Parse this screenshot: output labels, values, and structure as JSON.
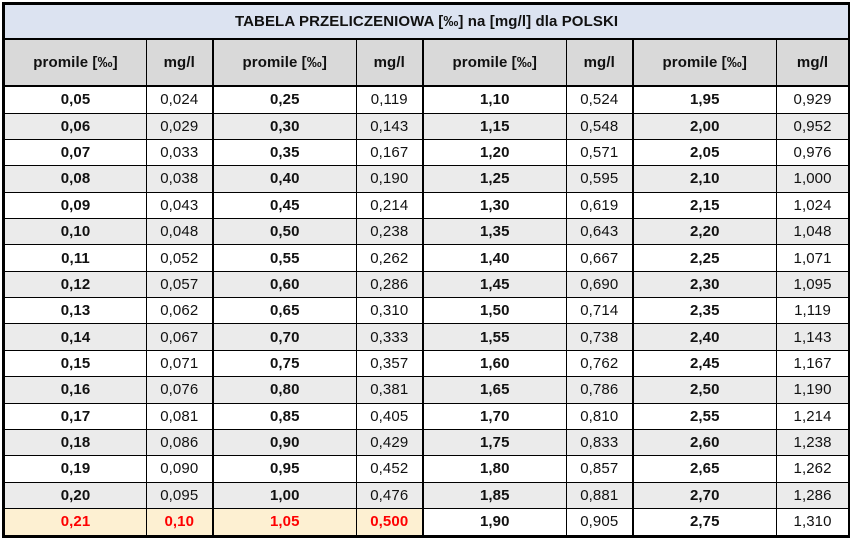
{
  "title": "TABELA PRZELICZENIOWA [‰] na [mg/l] dla POLSKI",
  "columns": [
    "promile [‰]",
    "mg/l",
    "promile [‰]",
    "mg/l",
    "promile [‰]",
    "mg/l",
    "promile [‰]",
    "mg/l"
  ],
  "rows": [
    [
      "0,05",
      "0,024",
      "0,25",
      "0,119",
      "1,10",
      "0,524",
      "1,95",
      "0,929"
    ],
    [
      "0,06",
      "0,029",
      "0,30",
      "0,143",
      "1,15",
      "0,548",
      "2,00",
      "0,952"
    ],
    [
      "0,07",
      "0,033",
      "0,35",
      "0,167",
      "1,20",
      "0,571",
      "2,05",
      "0,976"
    ],
    [
      "0,08",
      "0,038",
      "0,40",
      "0,190",
      "1,25",
      "0,595",
      "2,10",
      "1,000"
    ],
    [
      "0,09",
      "0,043",
      "0,45",
      "0,214",
      "1,30",
      "0,619",
      "2,15",
      "1,024"
    ],
    [
      "0,10",
      "0,048",
      "0,50",
      "0,238",
      "1,35",
      "0,643",
      "2,20",
      "1,048"
    ],
    [
      "0,11",
      "0,052",
      "0,55",
      "0,262",
      "1,40",
      "0,667",
      "2,25",
      "1,071"
    ],
    [
      "0,12",
      "0,057",
      "0,60",
      "0,286",
      "1,45",
      "0,690",
      "2,30",
      "1,095"
    ],
    [
      "0,13",
      "0,062",
      "0,65",
      "0,310",
      "1,50",
      "0,714",
      "2,35",
      "1,119"
    ],
    [
      "0,14",
      "0,067",
      "0,70",
      "0,333",
      "1,55",
      "0,738",
      "2,40",
      "1,143"
    ],
    [
      "0,15",
      "0,071",
      "0,75",
      "0,357",
      "1,60",
      "0,762",
      "2,45",
      "1,167"
    ],
    [
      "0,16",
      "0,076",
      "0,80",
      "0,381",
      "1,65",
      "0,786",
      "2,50",
      "1,190"
    ],
    [
      "0,17",
      "0,081",
      "0,85",
      "0,405",
      "1,70",
      "0,810",
      "2,55",
      "1,214"
    ],
    [
      "0,18",
      "0,086",
      "0,90",
      "0,429",
      "1,75",
      "0,833",
      "2,60",
      "1,238"
    ],
    [
      "0,19",
      "0,090",
      "0,95",
      "0,452",
      "1,80",
      "0,857",
      "2,65",
      "1,262"
    ],
    [
      "0,20",
      "0,095",
      "1,00",
      "0,476",
      "1,85",
      "0,881",
      "2,70",
      "1,286"
    ],
    [
      "0,21",
      "0,10",
      "1,05",
      "0,500",
      "1,90",
      "0,905",
      "2,75",
      "1,310"
    ]
  ],
  "highlight": {
    "row_index": 16,
    "col_count": 4
  },
  "colors": {
    "title_bg": "#dce3f1",
    "header_bg": "#d9d9d9",
    "stripe_bg": "#ebebeb",
    "border": "#000000",
    "highlight_bg": "#fdf0d2",
    "highlight_text": "#fe0000"
  }
}
